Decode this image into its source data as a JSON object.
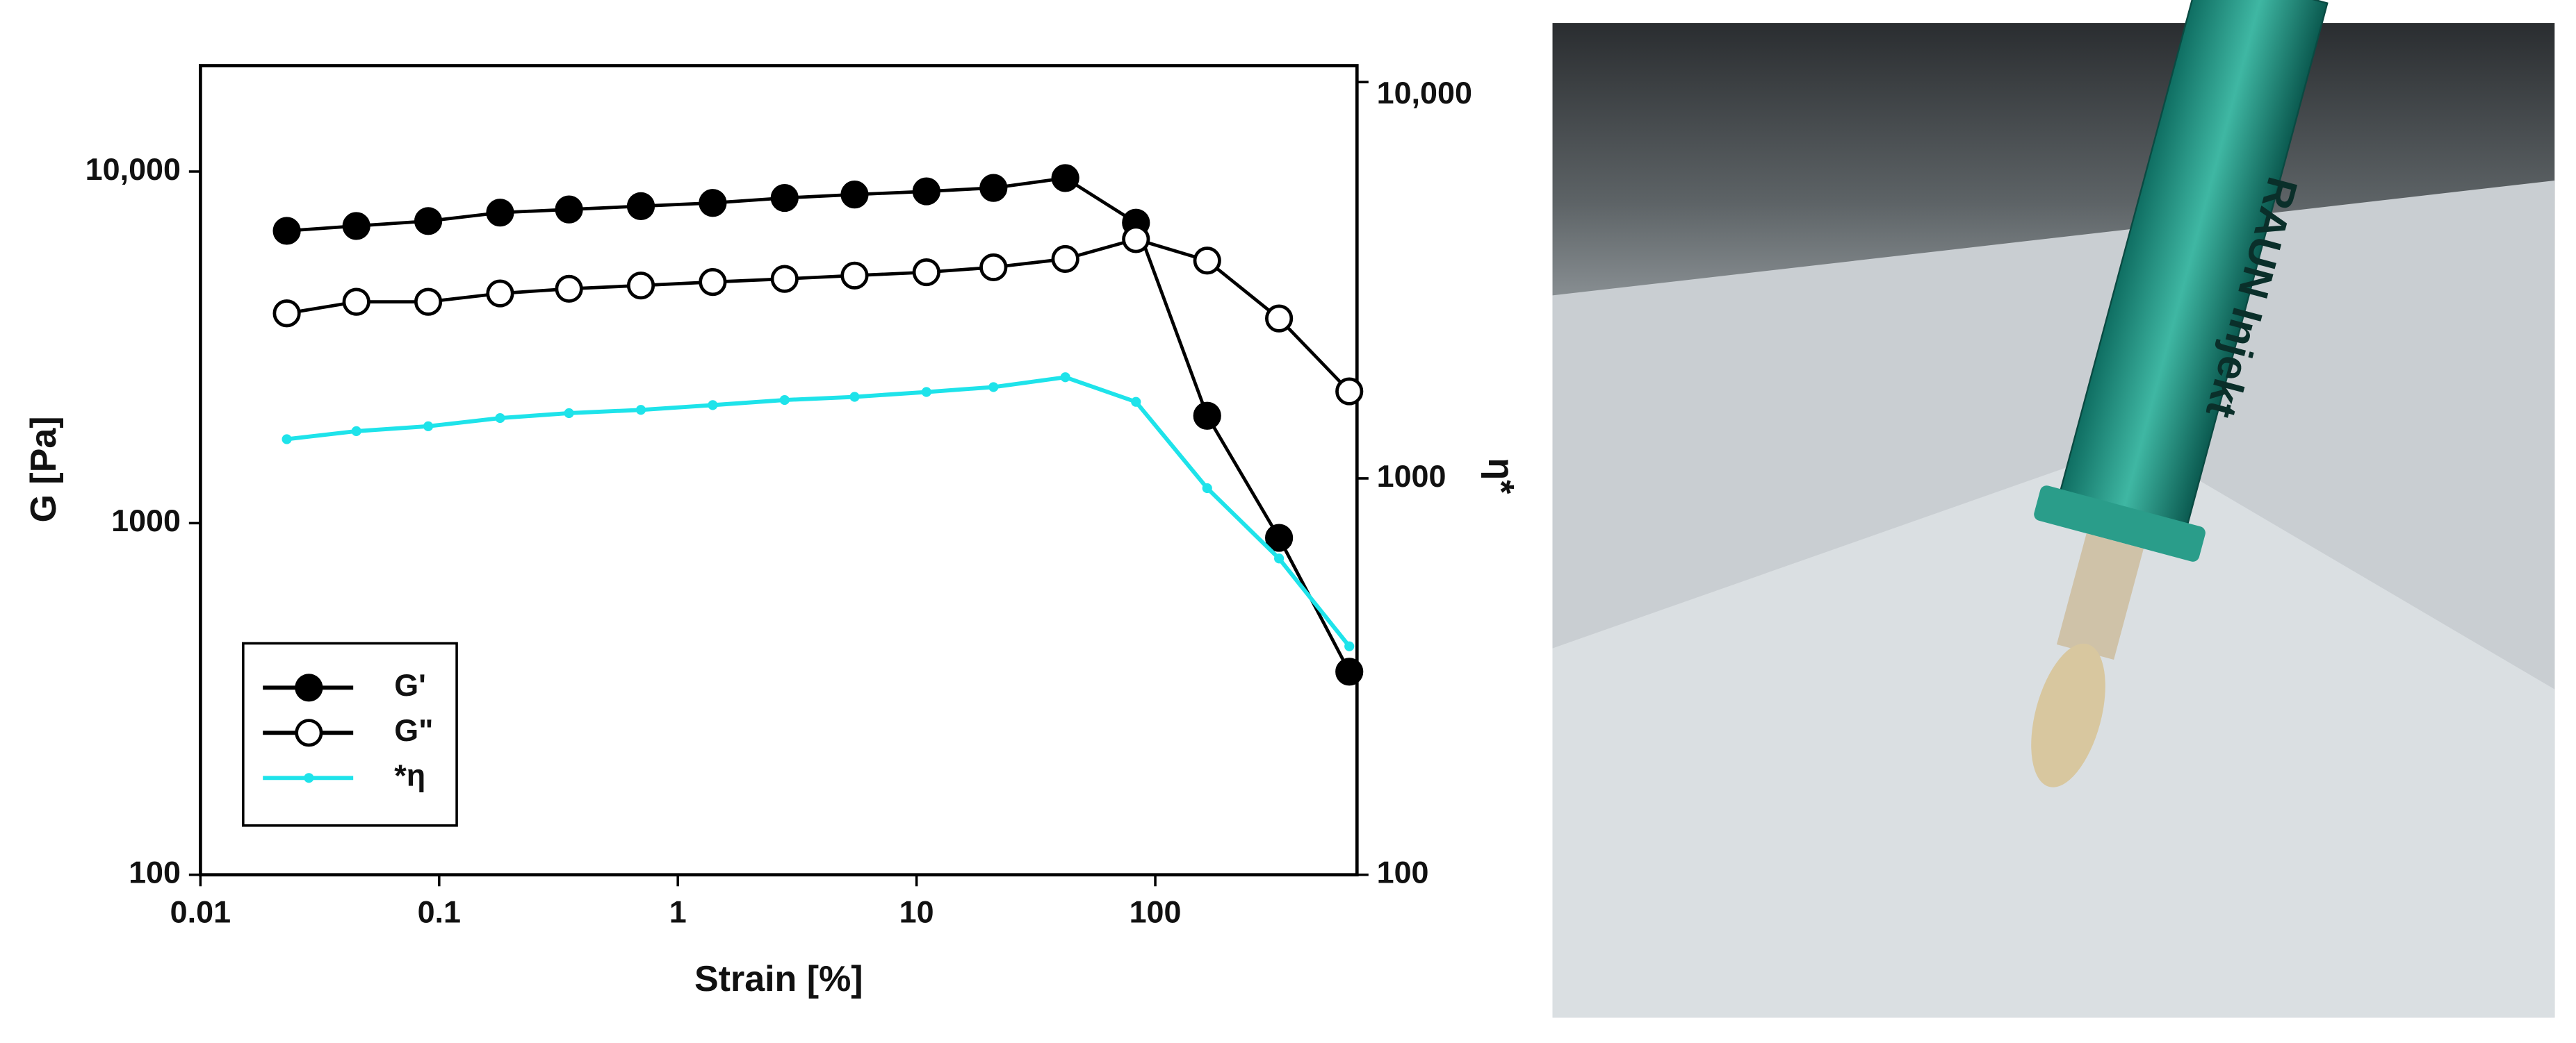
{
  "chart_data": {
    "type": "line",
    "x_label": "Strain [%]",
    "y_label": "G [Pa]",
    "y2_label": "η*",
    "log_x": true,
    "log_y": true,
    "log_y2": true,
    "xlim": [
      0.01,
      700
    ],
    "ylim": [
      100,
      20000
    ],
    "y2lim": [
      100,
      11000
    ],
    "xticks": [
      0.01,
      0.1,
      1,
      10,
      100
    ],
    "yticks": [
      100,
      1000,
      {
        "value": 10000,
        "label": "10,000"
      }
    ],
    "y2ticks": [
      100,
      1000,
      {
        "value": 10000,
        "label": "10,000"
      }
    ],
    "legend": "lower-left",
    "x": [
      0.023,
      0.045,
      0.09,
      0.18,
      0.35,
      0.7,
      1.4,
      2.8,
      5.5,
      11,
      21,
      42,
      83,
      165,
      330,
      650
    ],
    "series": [
      {
        "name": "G'",
        "color": "#000000",
        "marker": "filled-circle",
        "values": [
          6780,
          7000,
          7230,
          7640,
          7800,
          7970,
          8140,
          8410,
          8600,
          8780,
          8980,
          9580,
          7150,
          2020,
          908,
          378
        ]
      },
      {
        "name": "G\"",
        "color": "#000000",
        "marker": "open-circle",
        "values": [
          3950,
          4260,
          4260,
          4500,
          4640,
          4740,
          4850,
          4950,
          5060,
          5170,
          5340,
          5640,
          6420,
          5580,
          3820,
          2370
        ]
      },
      {
        "name": "*η",
        "color": "#1ee3ea",
        "marker": "small-dot",
        "axis": "y2",
        "values": [
          1256,
          1316,
          1354,
          1420,
          1461,
          1489,
          1531,
          1577,
          1606,
          1652,
          1700,
          1800,
          1560,
          945,
          628,
          377
        ]
      }
    ]
  },
  "photo_text": "RAUN Injekt"
}
